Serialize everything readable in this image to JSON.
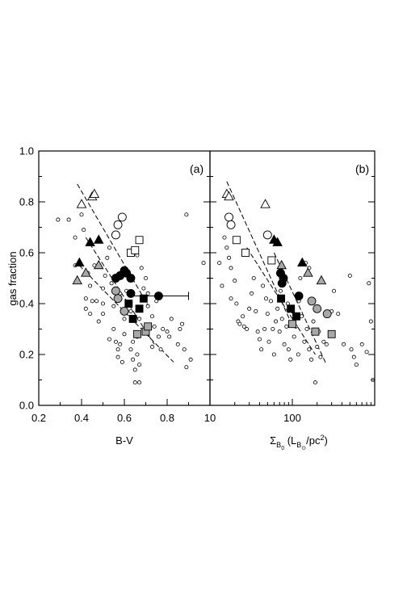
{
  "chart_data": [
    {
      "panel": "(a)",
      "type": "scatter",
      "xscale": "linear",
      "xlabel": "B-V",
      "ylabel": "gas fraction",
      "xlim": [
        0.2,
        1.0
      ],
      "ylim": [
        0.0,
        1.0
      ],
      "xticks": [
        "0.2",
        "0.4",
        "0.6",
        "0.8"
      ],
      "yticks": [
        "0.0",
        "0.2",
        "0.4",
        "0.6",
        "0.8",
        "1.0"
      ],
      "small_circles": [
        [
          0.29,
          0.73
        ],
        [
          0.34,
          0.73
        ],
        [
          0.37,
          0.66
        ],
        [
          0.4,
          0.75
        ],
        [
          0.41,
          0.69
        ],
        [
          0.37,
          0.55
        ],
        [
          0.43,
          0.52
        ],
        [
          0.44,
          0.47
        ],
        [
          0.42,
          0.42
        ],
        [
          0.42,
          0.38
        ],
        [
          0.47,
          0.41
        ],
        [
          0.45,
          0.41
        ],
        [
          0.48,
          0.33
        ],
        [
          0.5,
          0.4
        ],
        [
          0.5,
          0.36
        ],
        [
          0.51,
          0.51
        ],
        [
          0.52,
          0.58
        ],
        [
          0.53,
          0.62
        ],
        [
          0.54,
          0.48
        ],
        [
          0.55,
          0.39
        ],
        [
          0.55,
          0.3
        ],
        [
          0.56,
          0.25
        ],
        [
          0.57,
          0.22
        ],
        [
          0.58,
          0.24
        ],
        [
          0.59,
          0.17
        ],
        [
          0.6,
          0.28
        ],
        [
          0.6,
          0.34
        ],
        [
          0.61,
          0.45
        ],
        [
          0.62,
          0.4
        ],
        [
          0.63,
          0.37
        ],
        [
          0.63,
          0.22
        ],
        [
          0.64,
          0.25
        ],
        [
          0.64,
          0.18
        ],
        [
          0.65,
          0.14
        ],
        [
          0.66,
          0.2
        ],
        [
          0.66,
          0.27
        ],
        [
          0.67,
          0.34
        ],
        [
          0.67,
          0.16
        ],
        [
          0.68,
          0.54
        ],
        [
          0.69,
          0.46
        ],
        [
          0.7,
          0.5
        ],
        [
          0.71,
          0.44
        ],
        [
          0.71,
          0.39
        ],
        [
          0.72,
          0.31
        ],
        [
          0.73,
          0.35
        ],
        [
          0.73,
          0.23
        ],
        [
          0.74,
          0.31
        ],
        [
          0.75,
          0.41
        ],
        [
          0.76,
          0.27
        ],
        [
          0.77,
          0.22
        ],
        [
          0.78,
          0.3
        ],
        [
          0.8,
          0.29
        ],
        [
          0.81,
          0.27
        ],
        [
          0.82,
          0.34
        ],
        [
          0.85,
          0.24
        ],
        [
          0.86,
          0.3
        ],
        [
          0.87,
          0.32
        ],
        [
          0.88,
          0.22
        ],
        [
          0.89,
          0.15
        ],
        [
          0.91,
          0.18
        ],
        [
          0.89,
          0.75
        ],
        [
          0.97,
          0.56
        ],
        [
          0.65,
          0.09
        ],
        [
          0.67,
          0.09
        ],
        [
          0.68,
          0.65
        ],
        [
          0.66,
          0.59
        ],
        [
          0.58,
          0.44
        ],
        [
          0.46,
          0.55
        ],
        [
          0.53,
          0.26
        ],
        [
          0.44,
          0.36
        ],
        [
          0.5,
          0.46
        ],
        [
          0.57,
          0.19
        ]
      ],
      "marker_series": [
        {
          "marker": "open-triangle",
          "points": [
            [
              0.4,
              0.79
            ],
            [
              0.45,
              0.82
            ],
            [
              0.46,
              0.83
            ]
          ]
        },
        {
          "marker": "open-circle",
          "points": [
            [
              0.57,
              0.71
            ],
            [
              0.59,
              0.74
            ],
            [
              0.56,
              0.67
            ]
          ]
        },
        {
          "marker": "open-square",
          "points": [
            [
              0.67,
              0.65
            ],
            [
              0.63,
              0.6
            ],
            [
              0.65,
              0.61
            ]
          ]
        },
        {
          "marker": "black-triangle",
          "points": [
            [
              0.44,
              0.64
            ],
            [
              0.48,
              0.65
            ],
            [
              0.39,
              0.56
            ]
          ]
        },
        {
          "marker": "gray-triangle",
          "points": [
            [
              0.38,
              0.49
            ],
            [
              0.42,
              0.52
            ],
            [
              0.48,
              0.55
            ]
          ]
        },
        {
          "marker": "black-circle",
          "points": [
            [
              0.56,
              0.5
            ],
            [
              0.58,
              0.51
            ],
            [
              0.6,
              0.53
            ],
            [
              0.61,
              0.52
            ],
            [
              0.63,
              0.5
            ],
            [
              0.63,
              0.44
            ],
            [
              0.76,
              0.43
            ]
          ]
        },
        {
          "marker": "gray-circle",
          "points": [
            [
              0.56,
              0.45
            ],
            [
              0.57,
              0.42
            ],
            [
              0.6,
              0.37
            ]
          ]
        },
        {
          "marker": "black-square",
          "points": [
            [
              0.62,
              0.4
            ],
            [
              0.64,
              0.34
            ],
            [
              0.67,
              0.38
            ],
            [
              0.69,
              0.42
            ]
          ]
        },
        {
          "marker": "gray-square",
          "points": [
            [
              0.66,
              0.28
            ],
            [
              0.7,
              0.29
            ],
            [
              0.71,
              0.31
            ]
          ]
        }
      ],
      "error_bar": {
        "y": 0.43,
        "x_low": 0.62,
        "x_high": 0.9
      },
      "fit_lines": [
        {
          "x": [
            0.38,
            0.72
          ],
          "y": [
            0.87,
            0.38
          ]
        },
        {
          "x": [
            0.42,
            0.74
          ],
          "y": [
            0.66,
            0.24
          ]
        },
        {
          "x": [
            0.39,
            0.83
          ],
          "y": [
            0.55,
            0.17
          ]
        }
      ],
      "panel_tag": "(a)"
    },
    {
      "panel": "(b)",
      "type": "scatter",
      "xscale": "log",
      "xlabel": "Σ_B0 (L_B⊙/pc²)",
      "ylabel": "",
      "xlim": [
        10,
        1000
      ],
      "ylim": [
        0.0,
        1.0
      ],
      "xticks": [
        "10",
        "100"
      ],
      "small_circles": [
        [
          13,
          0.56
        ],
        [
          14,
          0.47
        ],
        [
          15,
          0.66
        ],
        [
          16,
          0.62
        ],
        [
          17,
          0.58
        ],
        [
          18,
          0.54
        ],
        [
          18,
          0.42
        ],
        [
          20,
          0.49
        ],
        [
          21,
          0.4
        ],
        [
          22,
          0.33
        ],
        [
          23,
          0.32
        ],
        [
          25,
          0.35
        ],
        [
          26,
          0.31
        ],
        [
          28,
          0.3
        ],
        [
          30,
          0.38
        ],
        [
          32,
          0.44
        ],
        [
          34,
          0.5
        ],
        [
          36,
          0.37
        ],
        [
          38,
          0.29
        ],
        [
          40,
          0.26
        ],
        [
          42,
          0.22
        ],
        [
          44,
          0.47
        ],
        [
          46,
          0.3
        ],
        [
          48,
          0.42
        ],
        [
          50,
          0.36
        ],
        [
          52,
          0.25
        ],
        [
          55,
          0.41
        ],
        [
          58,
          0.3
        ],
        [
          60,
          0.2
        ],
        [
          63,
          0.33
        ],
        [
          66,
          0.38
        ],
        [
          70,
          0.29
        ],
        [
          72,
          0.45
        ],
        [
          75,
          0.34
        ],
        [
          80,
          0.24
        ],
        [
          85,
          0.31
        ],
        [
          88,
          0.4
        ],
        [
          90,
          0.22
        ],
        [
          95,
          0.18
        ],
        [
          100,
          0.37
        ],
        [
          105,
          0.27
        ],
        [
          110,
          0.31
        ],
        [
          118,
          0.2
        ],
        [
          125,
          0.5
        ],
        [
          130,
          0.35
        ],
        [
          140,
          0.25
        ],
        [
          150,
          0.3
        ],
        [
          160,
          0.22
        ],
        [
          170,
          0.18
        ],
        [
          180,
          0.33
        ],
        [
          190,
          0.09
        ],
        [
          200,
          0.23
        ],
        [
          210,
          0.29
        ],
        [
          220,
          0.19
        ],
        [
          240,
          0.25
        ],
        [
          260,
          0.24
        ],
        [
          300,
          0.37
        ],
        [
          320,
          0.45
        ],
        [
          360,
          0.36
        ],
        [
          420,
          0.24
        ],
        [
          500,
          0.51
        ],
        [
          520,
          0.22
        ],
        [
          560,
          0.19
        ],
        [
          600,
          0.16
        ],
        [
          700,
          0.24
        ],
        [
          800,
          0.21
        ],
        [
          850,
          0.48
        ],
        [
          900,
          0.33
        ],
        [
          950,
          0.1
        ],
        [
          160,
          0.54
        ],
        [
          145,
          0.56
        ],
        [
          120,
          0.41
        ]
      ],
      "marker_series": [
        {
          "marker": "open-triangle",
          "points": [
            [
              16,
              0.83
            ],
            [
              17,
              0.82
            ],
            [
              47,
              0.79
            ]
          ]
        },
        {
          "marker": "open-circle",
          "points": [
            [
              17,
              0.74
            ],
            [
              18,
              0.71
            ],
            [
              50,
              0.67
            ]
          ]
        },
        {
          "marker": "open-square",
          "points": [
            [
              21,
              0.65
            ],
            [
              27,
              0.6
            ],
            [
              56,
              0.57
            ]
          ]
        },
        {
          "marker": "black-triangle",
          "points": [
            [
              60,
              0.65
            ],
            [
              66,
              0.64
            ],
            [
              132,
              0.56
            ]
          ]
        },
        {
          "marker": "gray-triangle",
          "points": [
            [
              74,
              0.55
            ],
            [
              155,
              0.52
            ],
            [
              225,
              0.49
            ]
          ]
        },
        {
          "marker": "black-circle",
          "points": [
            [
              72,
              0.52
            ],
            [
              75,
              0.48
            ],
            [
              78,
              0.5
            ],
            [
              120,
              0.43
            ]
          ]
        },
        {
          "marker": "gray-circle",
          "points": [
            [
              172,
              0.41
            ],
            [
              200,
              0.38
            ],
            [
              265,
              0.36
            ]
          ]
        },
        {
          "marker": "black-square",
          "points": [
            [
              73,
              0.42
            ],
            [
              96,
              0.38
            ],
            [
              112,
              0.35
            ]
          ]
        },
        {
          "marker": "gray-square",
          "points": [
            [
              100,
              0.32
            ],
            [
              190,
              0.29
            ],
            [
              300,
              0.28
            ]
          ]
        }
      ],
      "fit_lines": [
        {
          "x": [
            16,
            95
          ],
          "y": [
            0.88,
            0.33
          ]
        },
        {
          "x": [
            28,
            190
          ],
          "y": [
            0.62,
            0.2
          ]
        },
        {
          "x": [
            60,
            260
          ],
          "y": [
            0.6,
            0.16
          ]
        }
      ],
      "panel_tag": "(b)"
    }
  ]
}
